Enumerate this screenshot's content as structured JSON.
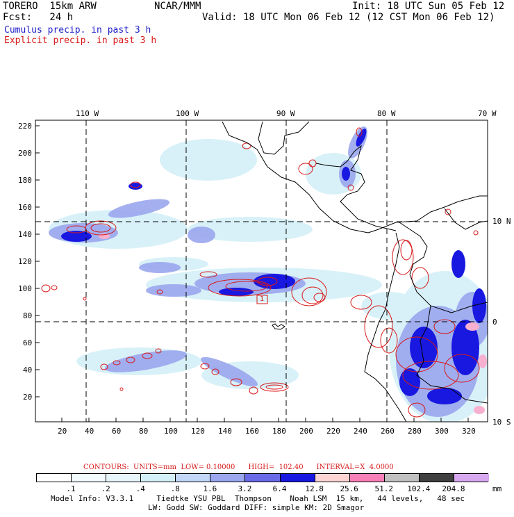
{
  "header": {
    "model": "TORERO  15km ARW",
    "org": "NCAR/MMM",
    "init": "Init: 18 UTC Sun 05 Feb 12",
    "fcst": "Fcst:   24 h",
    "valid": "Valid: 18 UTC Mon 06 Feb 12 (12 CST Mon 06 Feb 12)",
    "legend_cumulus": "Cumulus precip. in past 3 h",
    "legend_explicit": "Explicit precip. in past 3 h"
  },
  "map": {
    "lon_labels": [
      "110 W",
      "100 W",
      "90 W",
      "80 W",
      "70 W"
    ],
    "lat_labels": [
      "10 N",
      "0",
      "10 S"
    ],
    "y_ticks": [
      "220",
      "200",
      "180",
      "160",
      "140",
      "120",
      "100",
      "80",
      "60",
      "40",
      "20"
    ],
    "x_ticks": [
      "20",
      "40",
      "60",
      "80",
      "100",
      "120",
      "140",
      "160",
      "180",
      "200",
      "220",
      "240",
      "260",
      "280",
      "300",
      "320"
    ],
    "box_label": "1",
    "colors": {
      "cumulus": "#1c1cc8",
      "explicit": "#d81818",
      "coast": "#000000"
    }
  },
  "contours": {
    "text": "CONTOURS:  UNITS=mm  LOW= 0.10000      HIGH=  102.40      INTERVAL=X  4.0000"
  },
  "colorbar": {
    "labels": [
      ".1",
      ".2",
      ".4",
      ".8",
      "1.6",
      "3.2",
      "6.4",
      "12.8",
      "25.6",
      "51.2",
      "102.4",
      "204.8"
    ],
    "unit": "mm",
    "colors": [
      "#ffffff",
      "#f4fbff",
      "#e6f6fb",
      "#d4f0f8",
      "#c2d6f8",
      "#9aa6ee",
      "#6a6ae8",
      "#1818e0",
      "#fcd4d4",
      "#f880b8",
      "#c0c0c0",
      "#404040",
      "#d8a8f0"
    ]
  },
  "footer": {
    "line1": "Model Info: V3.3.1     Tiedtke YSU PBL  Thompson    Noah LSM  15 km,   44 levels,   48 sec",
    "line2": "LW: Godd SW: Goddard DIFF: simple KM: 2D Smagor"
  }
}
